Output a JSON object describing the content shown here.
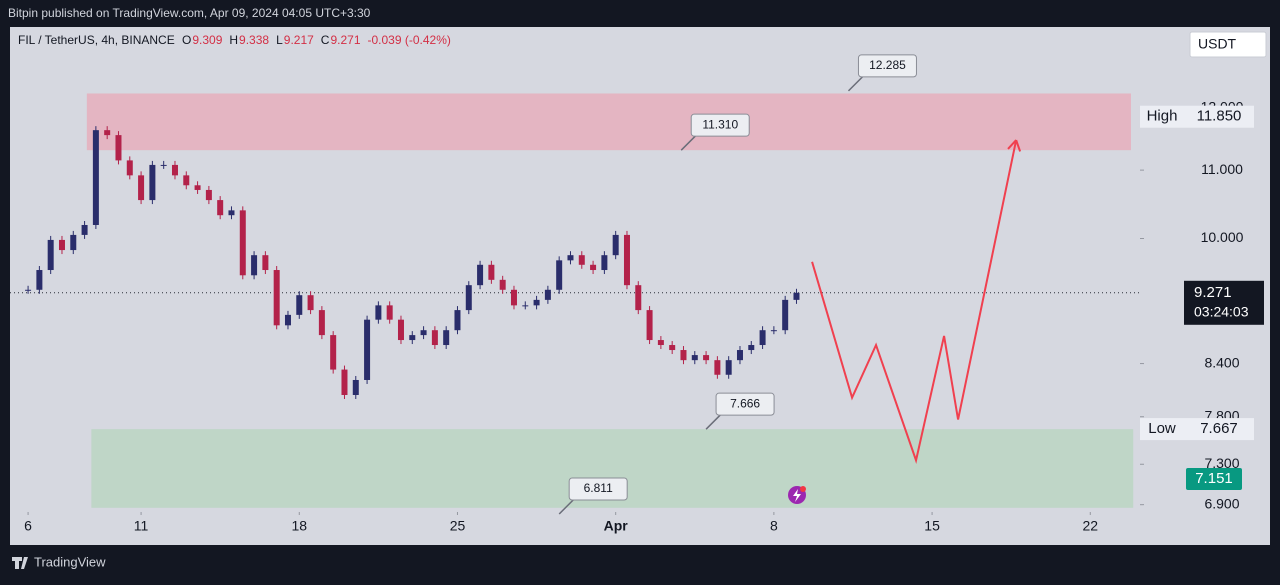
{
  "header": "Bitpin published on TradingView.com, Apr 09, 2024 04:05 UTC+3:30",
  "footer": "TradingView",
  "currency_button": "USDT",
  "chart_data": {
    "type": "candlestick",
    "symbol": "FIL / TetherUS, 4h, BINANCE",
    "ohlc": [
      {
        "key": "O",
        "value": 9.309
      },
      {
        "key": "H",
        "value": 9.338
      },
      {
        "key": "L",
        "value": 9.217
      },
      {
        "key": "C",
        "value": 9.271
      }
    ],
    "change": "-0.039 (-0.42%)",
    "log_scale": true,
    "grid": false,
    "up_color": "#2a2d6b",
    "down_color": "#b3224a",
    "x": [
      6,
      6.5,
      7,
      7.5,
      8,
      8.5,
      9,
      9.5,
      10,
      10.5,
      11,
      11.5,
      12,
      12.5,
      13,
      13.5,
      14,
      14.5,
      15,
      15.5,
      16,
      16.5,
      17,
      17.5,
      18,
      18.5,
      19,
      19.5,
      20,
      20.5,
      21,
      21.5,
      22,
      22.5,
      23,
      23.5,
      24,
      24.5,
      25,
      25.5,
      26,
      26.5,
      27,
      27.5,
      28,
      28.5,
      29,
      29.5,
      30,
      30.5,
      31,
      31.5,
      32,
      32.5,
      33,
      33.5,
      34,
      34.5,
      35,
      35.5,
      36,
      36.5,
      37,
      37.5,
      38,
      38.5,
      39,
      39.5,
      40
    ],
    "close": [
      9.31,
      9.57,
      9.98,
      9.84,
      10.05,
      10.19,
      11.63,
      11.55,
      11.15,
      10.92,
      10.55,
      11.08,
      11.08,
      10.92,
      10.77,
      10.7,
      10.55,
      10.33,
      10.4,
      9.5,
      9.77,
      9.57,
      8.86,
      8.99,
      9.24,
      9.05,
      8.74,
      8.33,
      8.04,
      8.21,
      8.93,
      9.11,
      8.93,
      8.68,
      8.74,
      8.8,
      8.62,
      8.8,
      9.05,
      9.37,
      9.64,
      9.44,
      9.31,
      9.11,
      9.11,
      9.18,
      9.31,
      9.7,
      9.77,
      9.64,
      9.57,
      9.77,
      10.05,
      9.37,
      9.05,
      8.68,
      8.62,
      8.56,
      8.44,
      8.5,
      8.44,
      8.27,
      8.44,
      8.56,
      8.62,
      8.8,
      8.8,
      9.18,
      9.271
    ],
    "xlim": [
      5.2,
      55.2
    ],
    "xticks": [
      6,
      11,
      18,
      25,
      {
        "value": 32,
        "label": "Apr"
      },
      {
        "value": 39,
        "label": "8"
      },
      {
        "value": 46,
        "label": "15"
      },
      {
        "value": 53,
        "label": "22"
      }
    ],
    "ylim": [
      6.83,
      13.41
    ],
    "yticks": [
      {
        "value": 12,
        "label": "12.000"
      },
      {
        "value": 11,
        "label": "11.000"
      },
      {
        "value": 10,
        "label": "10.000"
      },
      {
        "value": 8.4,
        "label": "8.400"
      },
      {
        "value": 7.8,
        "label": "7.800"
      },
      {
        "value": 7.3,
        "label": "7.300"
      },
      {
        "value": 6.9,
        "label": "6.900"
      }
    ],
    "zones": [
      {
        "x": [
          8.6,
          54.8
        ],
        "low": 11.31,
        "high": 12.24,
        "color": "#e8a9b8"
      },
      {
        "x": [
          8.8,
          54.9
        ],
        "low": 6.87,
        "high": 7.666,
        "color": "#b7d6bf"
      }
    ],
    "callouts": [
      {
        "x": 42.3,
        "value": 12.285,
        "label": "12.285"
      },
      {
        "x": 34.9,
        "value": 11.31,
        "label": "11.310"
      },
      {
        "x": 36.0,
        "value": 7.666,
        "label": "7.666"
      },
      {
        "x": 29.5,
        "value": 6.811,
        "label": "6.811"
      }
    ],
    "projection": {
      "color": "#f0404f",
      "x": [
        40.69,
        42.46,
        43.52,
        45.29,
        46.53,
        47.15,
        49.72
      ],
      "values": [
        9.68,
        8.01,
        8.62,
        7.34,
        8.73,
        7.77,
        11.47
      ]
    },
    "price_labels": [
      {
        "title": "High",
        "value": 11.85,
        "label": "11.850"
      },
      {
        "title": "Low",
        "value": 7.667,
        "label": "7.667"
      }
    ],
    "last_price": {
      "value": 9.271,
      "label": "9.271",
      "countdown": "03:24:03"
    },
    "marker_price": {
      "value": 7.151,
      "label": "7.151",
      "color": "#089981"
    }
  }
}
